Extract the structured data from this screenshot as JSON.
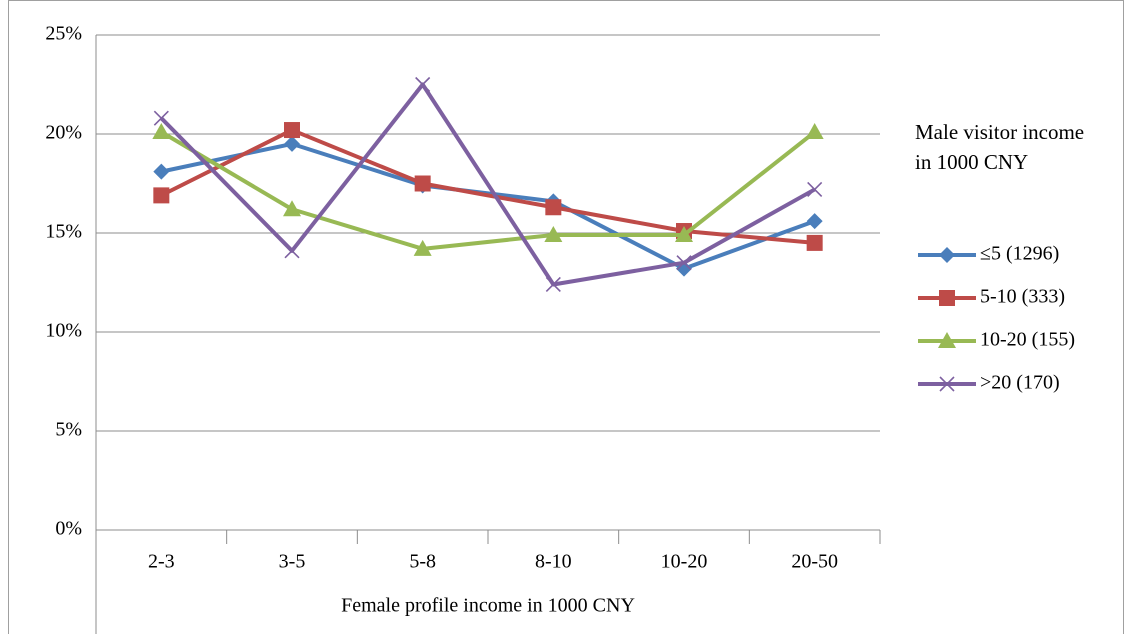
{
  "chart_data": {
    "type": "line",
    "x_label": "Female profile income in 1000 CNY",
    "legend_title": "Male visitor income in 1000 CNY",
    "legend": "right",
    "grid": true,
    "categories": [
      "2-3",
      "3-5",
      "5-8",
      "8-10",
      "10-20",
      "20-50"
    ],
    "ylim": [
      0,
      25
    ],
    "yticks": [
      {
        "value": 0,
        "label": "0%"
      },
      {
        "value": 5,
        "label": "5%"
      },
      {
        "value": 10,
        "label": "10%"
      },
      {
        "value": 15,
        "label": "15%"
      },
      {
        "value": 20,
        "label": "20%"
      },
      {
        "value": 25,
        "label": "25%"
      }
    ],
    "series": [
      {
        "name": "≤5 (1296)",
        "color": "#4a7ebb",
        "marker": "diamond",
        "values": [
          18.1,
          19.5,
          17.4,
          16.6,
          13.2,
          15.6
        ]
      },
      {
        "name": "5-10 (333)",
        "color": "#be4b48",
        "marker": "square",
        "values": [
          16.9,
          20.2,
          17.5,
          16.3,
          15.1,
          14.5
        ]
      },
      {
        "name": "10-20 (155)",
        "color": "#98b954",
        "marker": "triangle",
        "values": [
          20.1,
          16.2,
          14.2,
          14.9,
          14.9,
          20.1
        ]
      },
      {
        "name": ">20 (170)",
        "color": "#7d60a0",
        "marker": "x",
        "values": [
          20.8,
          14.1,
          22.5,
          12.4,
          13.5,
          17.2
        ]
      }
    ]
  }
}
